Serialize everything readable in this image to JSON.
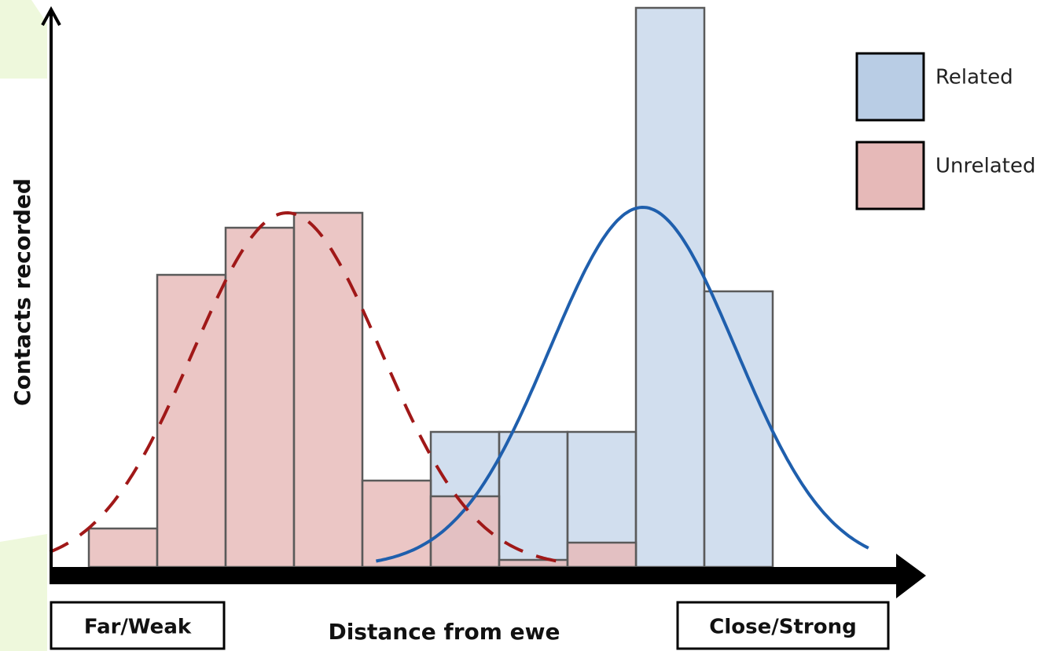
{
  "chart_data": {
    "type": "histogram",
    "x_label": "Distance from ewe",
    "y_label": "Contacts recorded",
    "x_start_label": "Far/Weak",
    "x_end_label": "Close/Strong",
    "bins": [
      0,
      1,
      2,
      3,
      4,
      5,
      6,
      7,
      8,
      9,
      10
    ],
    "xlim": [
      -0.575,
      12.207
    ],
    "ylim": [
      0,
      720
    ],
    "series": [
      {
        "name": "Related",
        "color": "#b9cde5",
        "values": [
          null,
          null,
          null,
          null,
          null,
          172,
          172,
          172,
          712,
          351
        ],
        "curve": {
          "mean": 8.1,
          "sd": 1.36,
          "peak": 458,
          "range": [
            4.2,
            11.4
          ],
          "style": "solid",
          "color": "#1f5fad"
        }
      },
      {
        "name": "Unrelated",
        "color": "#e6b9b8",
        "values": [
          49,
          372,
          432,
          451,
          110,
          90,
          9,
          31,
          null,
          null
        ],
        "curve": {
          "mean": 2.9,
          "sd": 1.38,
          "peak": 451,
          "range": [
            -0.57,
            7.0
          ],
          "style": "dashed",
          "color": "#a01818"
        }
      }
    ],
    "legend": "top-right"
  }
}
